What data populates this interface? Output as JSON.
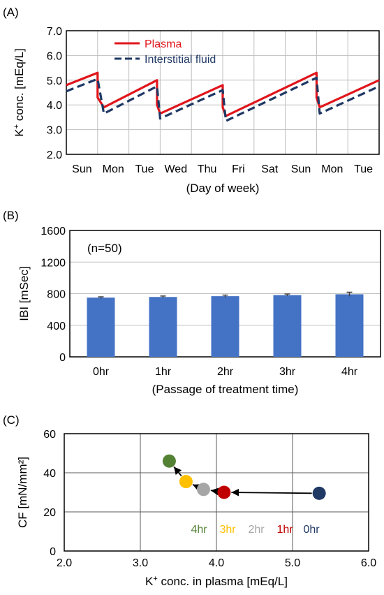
{
  "panels": {
    "a_label": "(A)",
    "b_label": "(B)",
    "c_label": "(C)"
  },
  "chart_data": [
    {
      "type": "line",
      "panel": "A",
      "xlabel": "(Day of week)",
      "ylabel_prefix": "K",
      "ylabel_sup": "+",
      "ylabel_suffix": " conc. [mEq/L]",
      "ylim": [
        2.0,
        7.0
      ],
      "yticks": [
        "2.0",
        "3.0",
        "4.0",
        "5.0",
        "6.0",
        "7.0"
      ],
      "categories": [
        "Sun",
        "Mon",
        "Tue",
        "Wed",
        "Thu",
        "Fri",
        "Sat",
        "Sun",
        "Mon",
        "Tue"
      ],
      "xlim": [
        0,
        10
      ],
      "grid": true,
      "legend_position": "top-left",
      "series": [
        {
          "name": "Plasma",
          "color": "#e0161c",
          "style": "solid",
          "points": [
            [
              0,
              4.8
            ],
            [
              1,
              5.3
            ],
            [
              1,
              4.3
            ],
            [
              1.2,
              3.9
            ],
            [
              2.9,
              5.0
            ],
            [
              2.9,
              4.0
            ],
            [
              3.0,
              3.65
            ],
            [
              5.0,
              4.8
            ],
            [
              5.0,
              3.9
            ],
            [
              5.1,
              3.55
            ],
            [
              8.0,
              5.3
            ],
            [
              8.0,
              4.3
            ],
            [
              8.1,
              3.9
            ],
            [
              10,
              5.0
            ]
          ]
        },
        {
          "name": "Interstitial fluid",
          "color": "#1f3864",
          "style": "dashed",
          "points": [
            [
              0,
              4.55
            ],
            [
              1,
              5.05
            ],
            [
              1.2,
              3.65
            ],
            [
              2.9,
              4.75
            ],
            [
              3.0,
              3.45
            ],
            [
              5.0,
              4.6
            ],
            [
              5.1,
              3.35
            ],
            [
              8.0,
              5.1
            ],
            [
              8.1,
              3.65
            ],
            [
              10,
              4.75
            ]
          ]
        }
      ]
    },
    {
      "type": "bar",
      "panel": "B",
      "annotation": "(n=50)",
      "ylabel": "IBI [mSec]",
      "xlabel": "(Passage of treatment time)",
      "ylim": [
        0,
        1600
      ],
      "yticks": [
        "0",
        "400",
        "800",
        "1200",
        "1600"
      ],
      "categories": [
        "0hr",
        "1hr",
        "2hr",
        "3hr",
        "4hr"
      ],
      "values": [
        750,
        758,
        768,
        782,
        792
      ],
      "errors": [
        10,
        12,
        14,
        14,
        26
      ],
      "bar_color": "#4472c4",
      "grid": true
    },
    {
      "type": "scatter",
      "panel": "C",
      "ylabel": "CF [mN/mm²]",
      "xlabel_prefix": "K",
      "xlabel_sup": "+",
      "xlabel_suffix": " conc. in plasma [mEq/L]",
      "xlim": [
        2.0,
        6.0
      ],
      "ylim": [
        0,
        60
      ],
      "xticks": [
        "2.0",
        "3.0",
        "4.0",
        "5.0",
        "6.0"
      ],
      "yticks": [
        "0",
        "20",
        "40",
        "60"
      ],
      "grid": true,
      "points": [
        {
          "label": "0hr",
          "x": 5.35,
          "y": 29.5,
          "color": "#1f3864"
        },
        {
          "label": "1hr",
          "x": 4.1,
          "y": 30.0,
          "color": "#c00000"
        },
        {
          "label": "2hr",
          "x": 3.83,
          "y": 31.5,
          "color": "#a6a6a6"
        },
        {
          "label": "3hr",
          "x": 3.6,
          "y": 35.5,
          "color": "#ffc000"
        },
        {
          "label": "4hr",
          "x": 3.38,
          "y": 46.0,
          "color": "#548235"
        }
      ],
      "legend_labels": [
        "4hr",
        "3hr",
        "2hr",
        "1hr",
        "0hr"
      ],
      "legend_colors": [
        "#548235",
        "#ffc000",
        "#a6a6a6",
        "#c00000",
        "#1f3864"
      ]
    }
  ]
}
